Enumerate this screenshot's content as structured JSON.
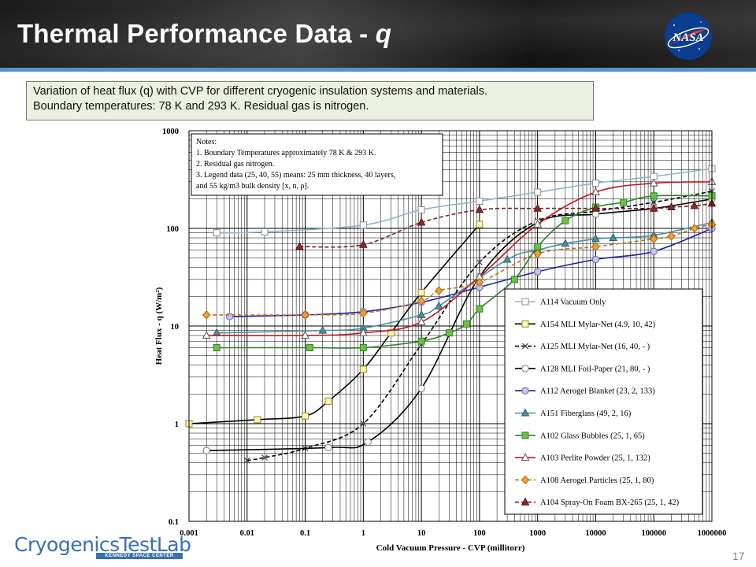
{
  "slide": {
    "title_main": "Thermal Performance Data - ",
    "title_symbol": "q",
    "page_number": "17",
    "logo_text": "CryogenicsTestLab",
    "logo_subtext": "KENNEDY SPACE CENTER",
    "nasa_logo_text": "NASA",
    "description": {
      "line1": "Variation of heat flux (q) with CVP for different cryogenic insulation systems and materials.",
      "line2": "Boundary temperatures: 78 K and 293 K. Residual gas is nitrogen."
    }
  },
  "chart_data": {
    "type": "line",
    "xscale": "log",
    "yscale": "log",
    "xlabel": "Cold Vacuum Pressure - CVP (millitorr)",
    "ylabel": "Heat Flux - q (W/m²)",
    "xlim": [
      0.001,
      1000000
    ],
    "ylim": [
      0.1,
      1000
    ],
    "x_ticks": [
      "0.001",
      "0.01",
      "0.1",
      "1",
      "10",
      "100",
      "1000",
      "10000",
      "100000",
      "1000000"
    ],
    "y_ticks": [
      "0.1",
      "1",
      "10",
      "100",
      "1000"
    ],
    "notes": [
      "Notes:",
      "1. Boundary Temperatures approximately 78 K  & 293 K.",
      "2. Residual gas nitrogen.",
      "3. Legend data (25, 40, 55) means: 25 mm  thickness, 40 layers,",
      "and 55 kg/m3 bulk density [x, n, ρ]."
    ],
    "series": [
      {
        "name": "A114 Vacuum Only",
        "color": "#8fb4cf",
        "marker": "square",
        "dashed": false,
        "x": [
          0.003,
          0.02,
          1,
          10,
          100,
          1000,
          10000,
          100000,
          1000000
        ],
        "y": [
          90,
          92,
          108,
          155,
          190,
          235,
          290,
          340,
          410
        ]
      },
      {
        "name": "A154 MLI Mylar-Net (4.9, 10, 42)",
        "color": "#000000",
        "marker": "square-yellow",
        "dashed": false,
        "x": [
          0.001,
          0.015,
          0.1,
          0.25,
          1,
          3,
          10,
          100
        ],
        "y": [
          1.0,
          1.1,
          1.2,
          1.7,
          3.6,
          8.5,
          22,
          110
        ]
      },
      {
        "name": "A125 MLI Mylar-Net (16, 40, - )",
        "color": "#000000",
        "marker": "x",
        "dashed": true,
        "x": [
          0.01,
          0.02,
          0.1,
          1,
          10,
          100,
          1000,
          10000,
          100000,
          1000000
        ],
        "y": [
          0.42,
          0.45,
          0.56,
          1.0,
          6.5,
          45,
          120,
          150,
          185,
          240
        ]
      },
      {
        "name": "A128 MLI Foil-Paper (21, 80, - )",
        "color": "#000000",
        "marker": "circle",
        "dashed": false,
        "x": [
          0.002,
          0.25,
          1.2,
          10,
          100,
          1000,
          10000,
          100000,
          1000000
        ],
        "y": [
          0.53,
          0.57,
          0.65,
          2.3,
          32,
          115,
          140,
          160,
          200
        ]
      },
      {
        "name": "A112 Aerogel Blanket (23, 2, 133)",
        "color": "#1f1fa8",
        "marker": "circle-lavender",
        "dashed": false,
        "x": [
          0.005,
          0.1,
          1,
          10,
          100,
          1000,
          10000,
          100000,
          1000000
        ],
        "y": [
          12.5,
          13,
          14,
          17.5,
          25,
          36,
          48,
          58,
          100
        ]
      },
      {
        "name": "A151 Fiberglass (49, 2, 16)",
        "color": "#4a8f9f",
        "marker": "triangle-teal",
        "dashed": false,
        "x": [
          0.003,
          0.2,
          1,
          10,
          20,
          300,
          1000,
          3000,
          10000,
          20000,
          100000,
          1000000
        ],
        "y": [
          8.5,
          9,
          9.5,
          13,
          16,
          48,
          60,
          70,
          78,
          80,
          85,
          115
        ]
      },
      {
        "name": "A102 Glass Bubbles (25, 1, 65)",
        "color": "#2f7f2f",
        "marker": "square-green",
        "dashed": false,
        "x": [
          0.003,
          0.12,
          1,
          10,
          30,
          60,
          100,
          400,
          1000,
          3000,
          10000,
          30000,
          100000,
          1000000
        ],
        "y": [
          6,
          6,
          6,
          7,
          8.5,
          10.5,
          15,
          30,
          65,
          120,
          165,
          185,
          215,
          215
        ]
      },
      {
        "name": "A103 Perlite Powder (25, 1, 132)",
        "color": "#c0171f",
        "marker": "triangle-white",
        "dashed": false,
        "x": [
          0.002,
          0.1,
          1,
          10,
          100,
          1000,
          10000,
          100000,
          1000000
        ],
        "y": [
          8,
          8,
          8.5,
          11,
          32,
          110,
          235,
          290,
          300
        ]
      },
      {
        "name": "A108 Aerogel Particles (25, 1, 80)",
        "color": "#b07a20",
        "marker": "diamond-orange",
        "dashed": true,
        "x": [
          0.002,
          0.1,
          1,
          10,
          20,
          100,
          1000,
          10000,
          100000,
          200000,
          500000,
          1000000
        ],
        "y": [
          13,
          13,
          13.5,
          18,
          23,
          28,
          55,
          65,
          78,
          83,
          100,
          110
        ]
      },
      {
        "name": "A104 Spray-On Foam BX-265 (25, 1, 42)",
        "color": "#7a2020",
        "marker": "triangle-maroon",
        "dashed": true,
        "x": [
          0.08,
          1,
          10,
          100,
          1000,
          10000,
          100000,
          200000,
          500000,
          1000000
        ],
        "y": [
          65,
          68,
          115,
          155,
          160,
          160,
          160,
          165,
          170,
          180
        ]
      }
    ]
  }
}
